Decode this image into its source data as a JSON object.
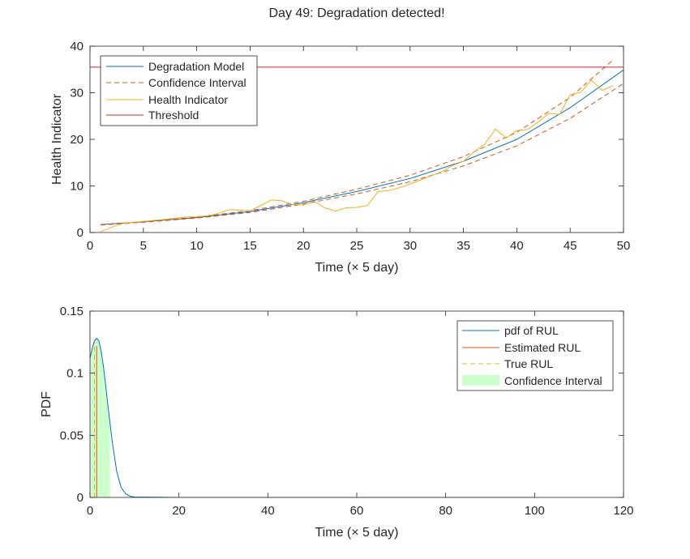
{
  "chart_data": [
    {
      "type": "line",
      "title": "Day 49: Degradation detected!",
      "xlabel": "Time (× 5 day)",
      "ylabel": "Health Indicator",
      "xlim": [
        0,
        50
      ],
      "ylim": [
        0,
        40
      ],
      "xticks": [
        0,
        5,
        10,
        15,
        20,
        25,
        30,
        35,
        40,
        45,
        50
      ],
      "yticks": [
        0,
        10,
        20,
        30,
        40
      ],
      "legend_position": "top-left",
      "grid": false,
      "series": [
        {
          "name": "Degradation Model",
          "color": "#0072BD",
          "style": "solid",
          "x": [
            1,
            5,
            10,
            15,
            20,
            25,
            30,
            35,
            40,
            45,
            50
          ],
          "y": [
            1.7,
            2.3,
            3.2,
            4.5,
            6.4,
            8.8,
            11.6,
            15.3,
            20.0,
            26.8,
            34.9
          ]
        },
        {
          "name": "Confidence Interval",
          "color": "#D95319",
          "style": "dashed",
          "x": [
            1,
            5,
            10,
            15,
            20,
            25,
            30,
            35,
            40,
            45,
            49
          ],
          "y": [
            1.7,
            2.3,
            3.3,
            4.7,
            6.7,
            9.3,
            12.3,
            16.3,
            21.5,
            29.0,
            37.0
          ]
        },
        {
          "name": "",
          "color": "#D95319",
          "style": "dashed",
          "x": [
            1,
            5,
            10,
            15,
            20,
            25,
            30,
            35,
            40,
            45,
            50
          ],
          "y": [
            1.6,
            2.2,
            3.1,
            4.3,
            6.1,
            8.3,
            10.9,
            14.3,
            18.6,
            24.5,
            32.0
          ]
        },
        {
          "name": "Health Indicator",
          "color": "#EDB120",
          "style": "solid",
          "x": [
            1,
            2,
            3,
            4,
            5,
            6,
            7,
            8,
            9,
            10,
            11,
            12,
            13,
            14,
            15,
            16,
            17,
            18,
            19,
            20,
            21,
            22,
            23,
            24,
            25,
            26,
            27,
            28,
            29,
            30,
            31,
            32,
            33,
            34,
            35,
            36,
            37,
            38,
            39,
            40,
            41,
            42,
            43,
            44,
            45,
            46,
            47,
            48,
            49
          ],
          "y": [
            0.2,
            1.1,
            1.9,
            2.2,
            2.4,
            2.6,
            2.8,
            3.1,
            3.3,
            3.4,
            3.6,
            4.1,
            4.9,
            4.8,
            4.6,
            5.8,
            7.0,
            6.8,
            6.0,
            5.9,
            6.7,
            5.3,
            4.6,
            5.3,
            5.4,
            5.8,
            8.8,
            9.0,
            9.6,
            10.4,
            11.3,
            12.2,
            13.1,
            14.4,
            15.3,
            17.3,
            19.0,
            22.2,
            20.3,
            21.9,
            22.1,
            23.7,
            25.6,
            25.3,
            29.6,
            30.1,
            32.7,
            30.5,
            31.5
          ]
        },
        {
          "name": "Threshold",
          "color": "#D7202A",
          "style": "solid",
          "x": [
            0,
            50
          ],
          "y": [
            35.5,
            35.5
          ]
        }
      ]
    },
    {
      "type": "area",
      "title": "",
      "xlabel": "Time (× 5 day)",
      "ylabel": "PDF",
      "xlim": [
        0,
        120
      ],
      "ylim": [
        0,
        0.15
      ],
      "xticks": [
        0,
        20,
        40,
        60,
        80,
        100,
        120
      ],
      "yticks": [
        0,
        0.05,
        0.1,
        0.15
      ],
      "ytick_labels": [
        "0",
        "0.05",
        "0.1",
        "0.15"
      ],
      "legend_position": "top-right",
      "grid": false,
      "series": [
        {
          "name": "pdf of RUL",
          "color": "#0072BD",
          "style": "solid",
          "x": [
            0,
            0.5,
            1,
            1.5,
            2,
            2.5,
            3,
            3.5,
            4,
            5,
            6,
            7,
            8,
            9,
            10,
            20,
            40,
            60,
            80,
            100
          ],
          "y": [
            0.112,
            0.12,
            0.126,
            0.128,
            0.126,
            0.118,
            0.106,
            0.091,
            0.075,
            0.045,
            0.021,
            0.008,
            0.003,
            0.001,
            0.0003,
            0,
            0,
            0,
            0,
            0
          ]
        },
        {
          "name": "Estimated RUL",
          "color": "#D95319",
          "style": "solid",
          "x": [
            1.5,
            1.5
          ],
          "y": [
            0,
            0.122
          ]
        },
        {
          "name": "True RUL",
          "color": "#EDB120",
          "style": "dashed",
          "x": [
            1,
            1
          ],
          "y": [
            0,
            0.125
          ]
        },
        {
          "name": "Confidence Interval",
          "color": "#CCFFCC",
          "style": "fill",
          "x_range": [
            0,
            4.5
          ]
        }
      ]
    }
  ]
}
